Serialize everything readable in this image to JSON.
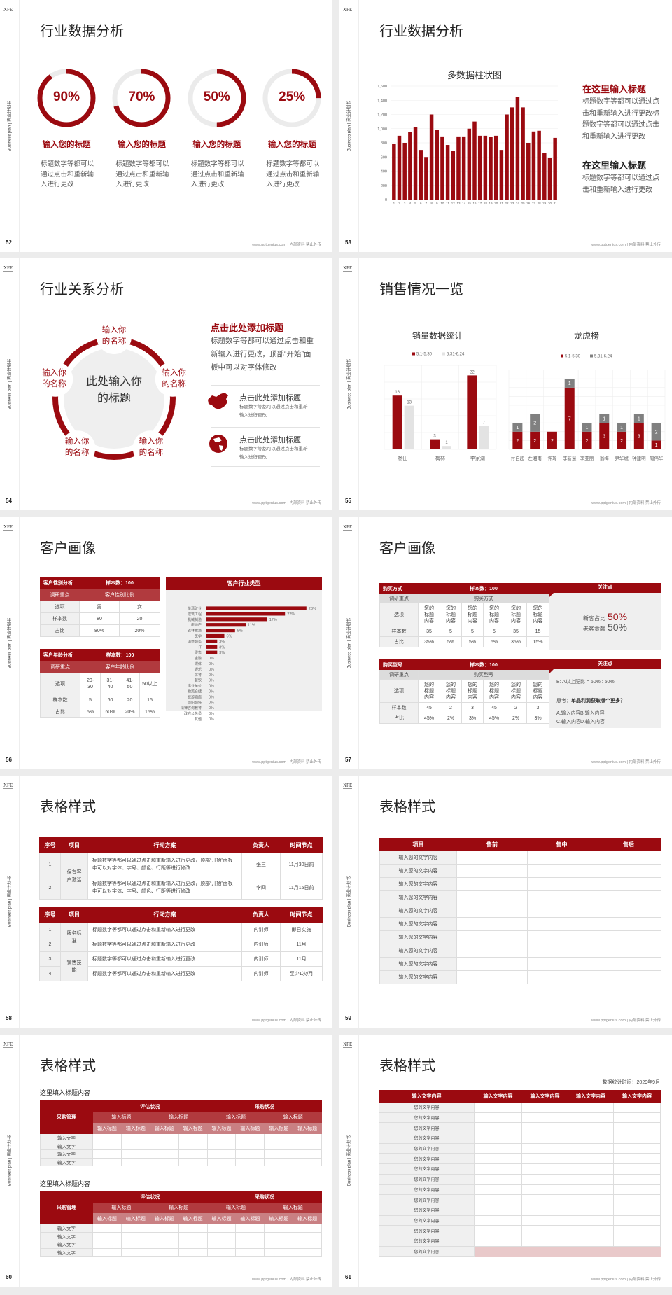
{
  "common": {
    "logo": "XFE",
    "side_label": "Business plan | 商业计划书",
    "footer": "www.pptgenius.com | 内部资料 禁止外传"
  },
  "colors": {
    "accent": "#9b0a10",
    "accent_mid": "#b13a3e",
    "accent_light": "#c98083",
    "track": "#ebebeb",
    "gray_bar": "#808080",
    "light_bar": "#e3e3e3",
    "panel_bg": "#efefef"
  },
  "s52": {
    "page": "52",
    "title": "行业数据分析",
    "items": [
      {
        "percent": 90,
        "label": "90%",
        "title": "输入您的标题",
        "desc": "标题数字等都可以通过点击和重新输入进行更改"
      },
      {
        "percent": 70,
        "label": "70%",
        "title": "输入您的标题",
        "desc": "标题数字等都可以通过点击和重新输入进行更改"
      },
      {
        "percent": 50,
        "label": "50%",
        "title": "输入您的标题",
        "desc": "标题数字等都可以通过点击和重新输入进行更改"
      },
      {
        "percent": 25,
        "label": "25%",
        "title": "输入您的标题",
        "desc": "标题数字等都可以通过点击和重新输入进行更改"
      }
    ]
  },
  "s53": {
    "page": "53",
    "title": "行业数据分析",
    "heading1": "在这里输入标题",
    "para1": "标题数字等都可以通过点击和重新输入进行更改标题数字等都可以通过点击和重新输入进行更改",
    "heading2": "在这里输入标题",
    "para2": "标题数字等都可以通过点击和重新输入进行更改"
  },
  "s54": {
    "page": "54",
    "title": "行业关系分析",
    "center": "此处输入你的标题",
    "nodes": [
      "输入你的名称",
      "输入你的名称",
      "输入你的名称",
      "输入你的名称",
      "输入你的名称"
    ],
    "heading": "点击此处添加标题",
    "para": "标题数字等都可以通过点击和重新输入进行更改，顶部“开始”面板中可以对字体修改",
    "items": [
      {
        "icon": "china-map-icon",
        "title": "点击此处添加标题",
        "desc": "标题数字等都可以通过点击和重新输入进行更改"
      },
      {
        "icon": "globe-icon",
        "title": "点击此处添加标题",
        "desc": "标题数字等都可以通过点击和重新输入进行更改"
      }
    ]
  },
  "s55": {
    "page": "55",
    "title": "销售情况一览"
  },
  "s56": {
    "page": "56",
    "title": "客户画像",
    "gender": {
      "header": [
        "客户性别分析",
        "样本数：100"
      ],
      "sub": [
        "调研重点",
        "客户性别比例"
      ],
      "rows": [
        [
          "选项",
          "男",
          "女"
        ],
        [
          "样本数",
          "80",
          "20"
        ],
        [
          "占比",
          "80%",
          "20%"
        ]
      ]
    },
    "age": {
      "header": [
        "客户年龄分析",
        "样本数：100"
      ],
      "sub": [
        "调研重点",
        "客户年龄比例"
      ],
      "rows": [
        [
          "选项",
          "20-30",
          "31-40",
          "41-50",
          "50以上"
        ],
        [
          "样本数",
          "5",
          "60",
          "20",
          "15"
        ],
        [
          "占比",
          "5%",
          "60%",
          "20%",
          "15%"
        ]
      ]
    }
  },
  "s57": {
    "page": "57",
    "title": "客户画像",
    "t1": {
      "header": [
        "购买方式",
        "样本数：100"
      ],
      "sub": [
        "调研重点",
        "购买方式"
      ],
      "rows": [
        [
          "选项",
          "您的标题内容",
          "您的标题内容",
          "您的标题内容",
          "您的标题内容",
          "您的标题内容",
          "您的标题内容"
        ],
        [
          "样本数",
          "35",
          "5",
          "5",
          "5",
          "35",
          "15"
        ],
        [
          "占比",
          "35%",
          "5%",
          "5%",
          "5%",
          "35%",
          "15%"
        ]
      ]
    },
    "t2": {
      "header": [
        "购买型号",
        "样本数：100"
      ],
      "sub": [
        "调研重点",
        "购买型号"
      ],
      "rows": [
        [
          "选项",
          "您的标题内容",
          "您的标题内容",
          "您的标题内容",
          "您的标题内容",
          "您的标题内容",
          "您的标题内容"
        ],
        [
          "样本数",
          "45",
          "2",
          "3",
          "45",
          "2",
          "3"
        ],
        [
          "占比",
          "45%",
          "2%",
          "3%",
          "45%",
          "2%",
          "3%"
        ]
      ]
    },
    "panel1": {
      "title": "关注点",
      "lines": [
        {
          "label": "新客占比",
          "value": "50%"
        },
        {
          "label": "老客贡献",
          "value": "50%"
        }
      ]
    },
    "panel2": {
      "title": "关注点",
      "ratio": "B: A以上配比 = 50% : 50%",
      "question_prefix": "思考：",
      "question": "单品利润获取哪个更多？",
      "options": [
        "A.输入内容",
        "B.输入内容",
        "C.输入内容",
        "D.输入内容"
      ]
    }
  },
  "s58": {
    "page": "58",
    "title": "表格样式",
    "headers": [
      "序号",
      "项目",
      "行动方案",
      "负责人",
      "时间节点"
    ],
    "t1": {
      "groups": [
        {
          "label": "保有客户激活",
          "span": 2
        }
      ],
      "rows": [
        {
          "no": "1",
          "plan": "标题数字等都可以通过点击和重新输入进行更改，顶部“开始”面板中可以对字体、字号、颜色、行距等进行修改",
          "owner": "张三",
          "time": "11月30日前"
        },
        {
          "no": "2",
          "plan": "标题数字等都可以通过点击和重新输入进行更改，顶部“开始”面板中可以对字体、字号、颜色、行距等进行修改",
          "owner": "李四",
          "time": "11月15日前"
        }
      ]
    },
    "t2": {
      "groups": [
        {
          "label": "服务标准",
          "span": 2
        },
        {
          "label": "销售技能",
          "span": 2
        }
      ],
      "rows": [
        {
          "no": "1",
          "plan": "标题数字等都可以通过点击和重新输入进行更改",
          "owner": "内训师",
          "time": "即日实施"
        },
        {
          "no": "2",
          "plan": "标题数字等都可以通过点击和重新输入进行更改",
          "owner": "内训师",
          "time": "11月"
        },
        {
          "no": "3",
          "plan": "标题数字等都可以通过点击和重新输入进行更改",
          "owner": "内训师",
          "time": "11月"
        },
        {
          "no": "4",
          "plan": "标题数字等都可以通过点击和重新输入进行更改",
          "owner": "内训师",
          "time": "至少1次/月"
        }
      ]
    }
  },
  "s59": {
    "page": "59",
    "title": "表格样式",
    "headers": [
      "项目",
      "售前",
      "售中",
      "售后"
    ],
    "rows": [
      "输入您的文字内容",
      "输入您的文字内容",
      "输入您的文字内容",
      "输入您的文字内容",
      "输入您的文字内容",
      "输入您的文字内容",
      "输入您的文字内容",
      "输入您的文字内容",
      "输入您的文字内容",
      "输入您的文字内容"
    ]
  },
  "s60": {
    "page": "60",
    "title": "表格样式",
    "tables": [
      {
        "heading": "这里填入标题内容",
        "corner": "采购管理",
        "groups": [
          "评估状况",
          "采购状况"
        ],
        "sub": [
          "输入标题",
          "输入标题",
          "输入标题",
          "输入标题"
        ],
        "subsub": [
          "输入标题",
          "输入标题",
          "输入标题",
          "输入标题",
          "输入标题",
          "输入标题",
          "输入标题",
          "输入标题"
        ],
        "rows": [
          "输入文字",
          "输入文字",
          "输入文字",
          "输入文字"
        ]
      },
      {
        "heading": "这里填入标题内容",
        "corner": "采购管理",
        "groups": [
          "评估状况",
          "采购状况"
        ],
        "sub": [
          "输入标题",
          "输入标题",
          "输入标题",
          "输入标题"
        ],
        "subsub": [
          "输入标题",
          "输入标题",
          "输入标题",
          "输入标题",
          "输入标题",
          "输入标题",
          "输入标题",
          "输入标题"
        ],
        "rows": [
          "输入文字",
          "输入文字",
          "输入文字",
          "输入文字"
        ]
      }
    ]
  },
  "s61": {
    "page": "61",
    "title": "表格样式",
    "date": "数据统计时间：2029年9月",
    "headers": [
      "输入文字内容",
      "输入文字内容",
      "输入文字内容",
      "输入文字内容",
      "输入文字内容"
    ],
    "rows": [
      "您的文字内容",
      "您的文字内容",
      "您的文字内容",
      "您的文字内容",
      "您的文字内容",
      "您的文字内容",
      "您的文字内容",
      "您的文字内容",
      "您的文字内容",
      "您的文字内容",
      "您的文字内容",
      "您的文字内容",
      "您的文字内容",
      "您的文字内容",
      "您的文字内容"
    ]
  },
  "chart_data": [
    {
      "type": "bar",
      "title": "多数据柱状图",
      "categories": [
        "1",
        "2",
        "3",
        "4",
        "5",
        "6",
        "7",
        "8",
        "9",
        "10",
        "11",
        "12",
        "13",
        "14",
        "15",
        "16",
        "17",
        "18",
        "19",
        "20",
        "21",
        "22",
        "23",
        "24",
        "25",
        "26",
        "27",
        "28",
        "29",
        "30",
        "31"
      ],
      "values": [
        790,
        900,
        800,
        950,
        1020,
        700,
        600,
        1200,
        980,
        890,
        770,
        690,
        890,
        890,
        1000,
        1100,
        900,
        900,
        880,
        900,
        700,
        1200,
        1300,
        1450,
        1300,
        800,
        960,
        970,
        660,
        590,
        870
      ],
      "ylim": [
        0,
        1600
      ],
      "yticks": [
        0,
        200,
        400,
        600,
        800,
        1000,
        1200,
        1400,
        1600
      ],
      "grid": true
    },
    {
      "type": "bar",
      "title": "销量数据统计",
      "categories": [
        "杨田",
        "梅林",
        "李家湖"
      ],
      "series": [
        {
          "name": "5.1-5.30",
          "values": [
            16,
            3,
            22
          ]
        },
        {
          "name": "5.31-6.24",
          "values": [
            13,
            1,
            7
          ]
        }
      ],
      "ylim": [
        0,
        25
      ],
      "grid": true,
      "legend": "top"
    },
    {
      "type": "bar",
      "stacked": true,
      "title": "龙虎榜",
      "categories": [
        "付自超",
        "左湘南",
        "许玲",
        "李新慧",
        "李亚丽",
        "翁梅",
        "尹华斌",
        "钟建明",
        "周伟华"
      ],
      "series": [
        {
          "name": "5.1-5.30",
          "values": [
            2,
            2,
            2,
            7,
            2,
            3,
            2,
            3,
            1
          ]
        },
        {
          "name": "5.31-6.24",
          "values": [
            1,
            2,
            0,
            1,
            1,
            1,
            1,
            1,
            2
          ]
        }
      ],
      "ylim": [
        0,
        9
      ],
      "grid": true,
      "legend": "top"
    },
    {
      "type": "bar",
      "orientation": "horizontal",
      "title": "客户行业类型",
      "categories": [
        "能源矿业",
        "建筑工程",
        "机械制造",
        "房地产",
        "农林牧渔",
        "医学",
        "消费服务",
        "IT",
        "零售",
        "金融",
        "媒体",
        "娱乐",
        "体育",
        "餐饮",
        "事业单位",
        "物流仓储",
        "旅游酒店",
        "纺织服饰",
        "法律咨询教育",
        "政府公务员",
        "其他"
      ],
      "values": [
        28,
        22,
        17,
        11,
        8,
        5,
        3,
        3,
        3,
        0,
        0,
        0,
        0,
        0,
        0,
        0,
        0,
        0,
        0,
        0,
        0
      ],
      "unit": "%"
    }
  ]
}
